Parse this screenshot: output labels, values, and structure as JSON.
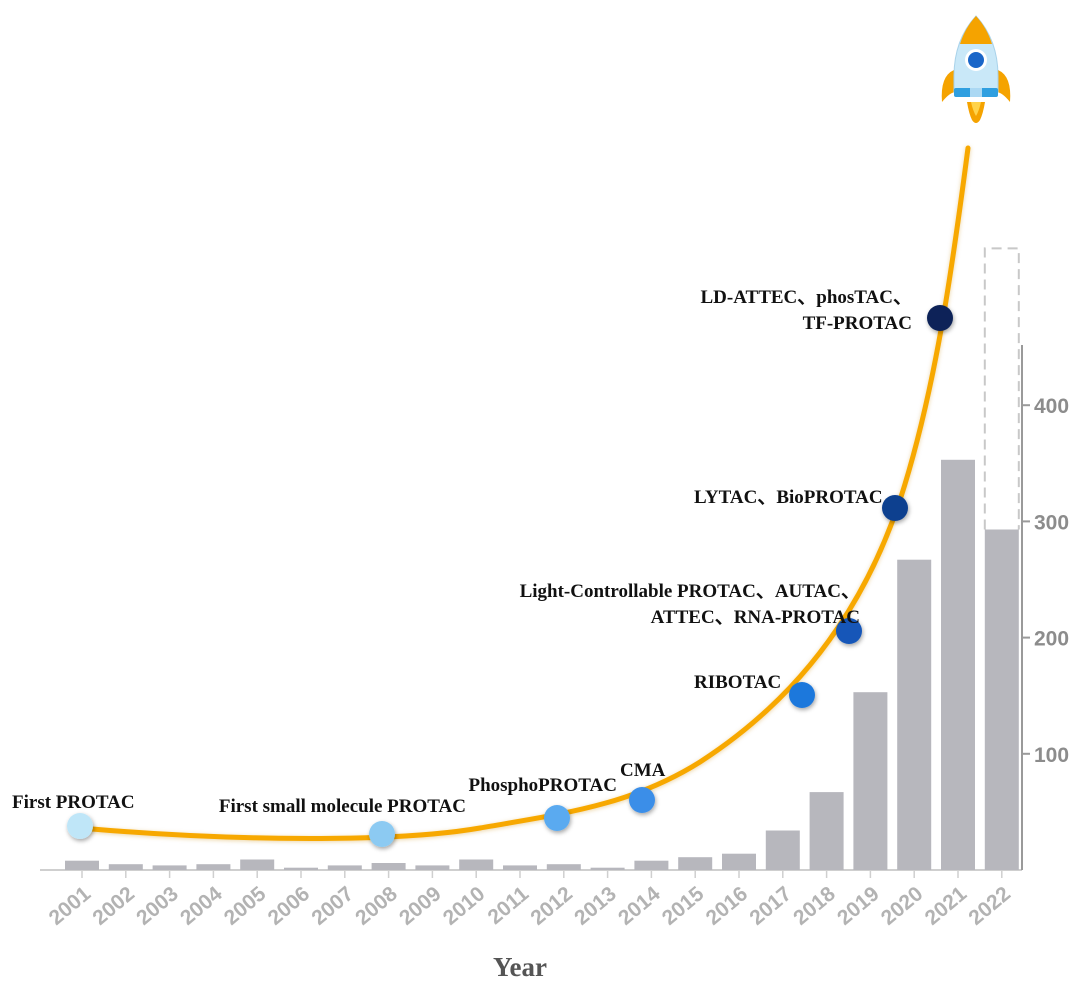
{
  "chart_data": {
    "type": "bar",
    "xlabel": "Year",
    "categories": [
      "2001",
      "2002",
      "2003",
      "2004",
      "2005",
      "2006",
      "2007",
      "2008",
      "2009",
      "2010",
      "2011",
      "2012",
      "2013",
      "2014",
      "2015",
      "2016",
      "2017",
      "2018",
      "2019",
      "2020",
      "2021",
      "2022"
    ],
    "values": [
      8,
      5,
      4,
      5,
      9,
      2,
      4,
      6,
      4,
      9,
      4,
      5,
      2,
      8,
      11,
      14,
      34,
      67,
      153,
      267,
      353,
      293
    ],
    "projected_extension": {
      "category": "2022",
      "value": 535,
      "style": "dashed outline"
    },
    "yaxis": {
      "position": "right",
      "ticks": [
        100,
        200,
        300,
        400
      ],
      "ylim": [
        0,
        400
      ]
    },
    "bar_color": "#b7b7bd",
    "curve_color": "#f7a800",
    "milestones": [
      {
        "year": 2001,
        "lines": [
          "First  PROTAC"
        ],
        "color": "#bfe6f8"
      },
      {
        "year": 2008,
        "lines": [
          "First small molecule PROTAC"
        ],
        "color": "#8ccaf2"
      },
      {
        "year": 2012,
        "lines": [
          "PhosphoPROTAC"
        ],
        "color": "#5aaaf0"
      },
      {
        "year": 2014,
        "lines": [
          "CMA"
        ],
        "color": "#3b8ee8"
      },
      {
        "year": 2018,
        "lines": [
          "RIBOTAC"
        ],
        "color": "#1f78dc"
      },
      {
        "year": 2019,
        "lines": [
          "Light-Controllable PROTAC、AUTAC、",
          "ATTEC、RNA-PROTAC"
        ],
        "color": "#1257b8"
      },
      {
        "year": 2020,
        "lines": [
          "LYTAC、BioPROTAC"
        ],
        "color": "#0d3f8f"
      },
      {
        "year": 2021,
        "lines": [
          "LD-ATTEC、phosTAC、",
          "TF-PROTAC"
        ],
        "color": "#0a2458"
      }
    ]
  }
}
